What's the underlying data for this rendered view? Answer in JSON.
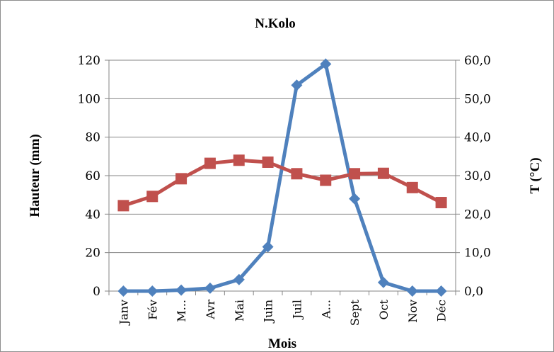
{
  "chart_data": {
    "type": "line",
    "title": "N.Kolo",
    "xlabel": "Mois",
    "ylabel": "Hauteur (mm)",
    "y2label": "T (°C)",
    "categories": [
      "Janv",
      "Fév",
      "M...",
      "Avr",
      "Mai",
      "Juin",
      "Juil",
      "A...",
      "Sept",
      "Oct",
      "Nov",
      "Déc"
    ],
    "ylim": [
      0,
      120
    ],
    "y2lim": [
      0,
      60
    ],
    "yticks": [
      "0",
      "20",
      "40",
      "60",
      "80",
      "100",
      "120"
    ],
    "y2ticks": [
      "0,0",
      "10,0",
      "20,0",
      "30,0",
      "40,0",
      "50,0",
      "60,0"
    ],
    "grid": true,
    "legend": "none",
    "series": [
      {
        "axis": "left",
        "color": "#4f81bd",
        "marker": "diamond",
        "values": [
          0,
          0,
          0.5,
          1.5,
          6,
          23,
          107,
          118,
          48,
          4.5,
          0,
          0
        ]
      },
      {
        "axis": "right",
        "color": "#c0504d",
        "marker": "square",
        "values": [
          22.2,
          24.6,
          29.2,
          33.2,
          34.0,
          33.5,
          30.5,
          28.8,
          30.5,
          30.6,
          26.9,
          23.0
        ]
      }
    ]
  }
}
